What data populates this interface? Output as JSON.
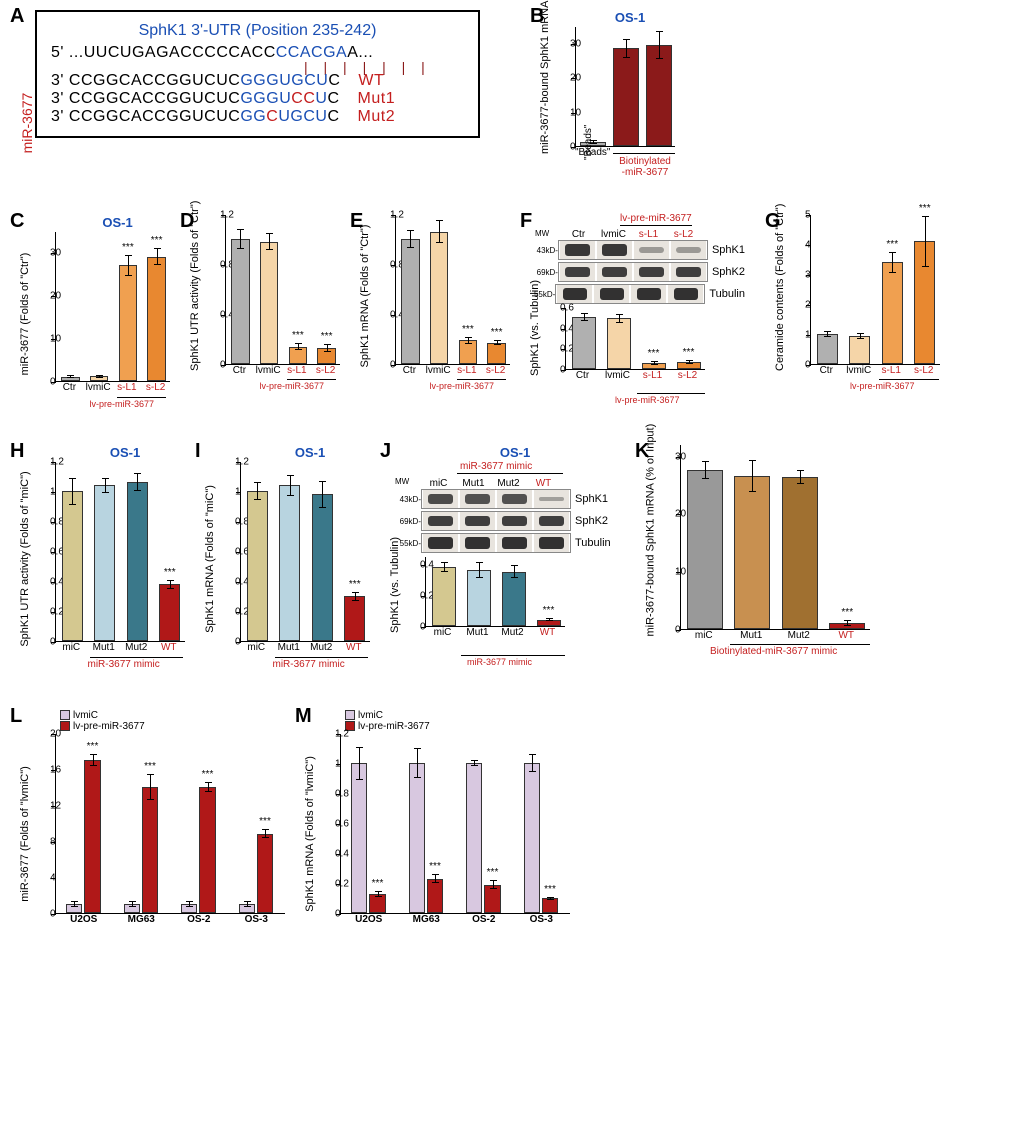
{
  "panelA": {
    "title": "SphK1 3'-UTR (Position 235-242)",
    "title_color": "#1a4fb4",
    "line1_prefix": "5'   ...UUCUGAGACCCCCACC",
    "line1_seed": "CCACGA",
    "line1_suffix": "A...",
    "pairing_bars_color": "#8b1a1a",
    "side_label": "miR-3677",
    "side_color": "#c41e1e",
    "rows": [
      {
        "prefix": "3'    CCGGCACCGGUCUC",
        "seed": "GGGUGCU",
        "seed_color": "#1a4fb4",
        "suffix": "C",
        "tag": "WT",
        "tag_color": "#c41e1e"
      },
      {
        "prefix": "3'    CCGGCACCGGUCUC",
        "seed": "GGGUCCU",
        "seed_color": "#1a4fb4",
        "mut_pos": [
          4,
          5
        ],
        "mut_color": "#c41e1e",
        "suffix": "C",
        "tag": "Mut1",
        "tag_color": "#c41e1e"
      },
      {
        "prefix": "3'    CCGGCACCGGUCUC",
        "seed": "GGCUGCU",
        "seed_color": "#1a4fb4",
        "mut_pos": [
          2
        ],
        "mut_color": "#c41e1e",
        "suffix": "C",
        "tag": "Mut2",
        "tag_color": "#c41e1e"
      }
    ]
  },
  "panelB": {
    "title": "OS-1",
    "title_color": "#1a4fb4",
    "y_label": "miR-3677-bound\nSphK1 mRNA (% of Input)",
    "y_max": 35,
    "y_ticks": [
      0,
      10,
      20,
      30
    ],
    "bars": [
      {
        "x": "\"Beads\"",
        "v": 1.2,
        "err": 0.5,
        "color": "#b0b0b0"
      },
      {
        "x": "",
        "v": 28.5,
        "err": 2.8,
        "color": "#8b1a1a"
      },
      {
        "x": "",
        "v": 29.5,
        "err": 4.0,
        "color": "#8b1a1a"
      }
    ],
    "group_label": "Biotinylated\n-miR-3677",
    "group_color": "#c41e1e"
  },
  "panelC": {
    "title": "OS-1",
    "title_color": "#1a4fb4",
    "y_label": "miR-3677 (Folds of \"Ctr\")",
    "y_max": 35,
    "y_ticks": [
      0,
      10,
      20,
      30
    ],
    "bars": [
      {
        "x": "Ctr",
        "v": 1.0,
        "err": 0.3,
        "color": "#b0b0b0"
      },
      {
        "x": "lvmiC",
        "v": 1.1,
        "err": 0.3,
        "color": "#f5d5a8"
      },
      {
        "x": "s-L1",
        "v": 27,
        "err": 2.5,
        "color": "#f0a050",
        "sig": "***",
        "xcolor": "#c41e1e"
      },
      {
        "x": "s-L2",
        "v": 29,
        "err": 2.0,
        "color": "#e88830",
        "sig": "***",
        "xcolor": "#c41e1e"
      }
    ],
    "group_label": "lv-pre-miR-3677",
    "group_color": "#c41e1e"
  },
  "panelD": {
    "y_label": "SphK1 UTR activity (Folds of \"Ctr\")",
    "y_max": 1.2,
    "y_ticks": [
      0,
      0.4,
      0.8,
      1.2
    ],
    "bars": [
      {
        "x": "Ctr",
        "v": 1.0,
        "err": 0.08,
        "color": "#b0b0b0"
      },
      {
        "x": "lvmiC",
        "v": 0.98,
        "err": 0.07,
        "color": "#f5d5a8"
      },
      {
        "x": "s-L1",
        "v": 0.14,
        "err": 0.03,
        "color": "#f0a050",
        "sig": "***",
        "xcolor": "#c41e1e"
      },
      {
        "x": "s-L2",
        "v": 0.13,
        "err": 0.03,
        "color": "#e88830",
        "sig": "***",
        "xcolor": "#c41e1e"
      }
    ],
    "group_label": "lv-pre-miR-3677",
    "group_color": "#c41e1e"
  },
  "panelE": {
    "y_label": "SphK1 mRNA (Folds of \"Ctr\")",
    "y_max": 1.2,
    "y_ticks": [
      0,
      0.4,
      0.8,
      1.2
    ],
    "bars": [
      {
        "x": "Ctr",
        "v": 1.0,
        "err": 0.07,
        "color": "#b0b0b0"
      },
      {
        "x": "lvmiC",
        "v": 1.06,
        "err": 0.09,
        "color": "#f5d5a8"
      },
      {
        "x": "s-L1",
        "v": 0.19,
        "err": 0.03,
        "color": "#f0a050",
        "sig": "***",
        "xcolor": "#c41e1e"
      },
      {
        "x": "s-L2",
        "v": 0.17,
        "err": 0.02,
        "color": "#e88830",
        "sig": "***",
        "xcolor": "#c41e1e"
      }
    ],
    "group_label": "lv-pre-miR-3677",
    "group_color": "#c41e1e"
  },
  "panelF": {
    "header": "lv-pre-miR-3677",
    "header_color": "#c41e1e",
    "lanes": [
      "Ctr",
      "lvmiC",
      "s-L1",
      "s-L2"
    ],
    "lane_s_color": "#c41e1e",
    "mw": [
      "43kD-",
      "69kD-",
      "55kD-"
    ],
    "proteins": [
      "SphK1",
      "SphK2",
      "Tubulin"
    ],
    "band_intensity": {
      "SphK1": [
        0.9,
        0.9,
        0.15,
        0.15
      ],
      "SphK2": [
        0.85,
        0.85,
        0.85,
        0.85
      ],
      "Tubulin": [
        0.95,
        0.95,
        0.95,
        0.95
      ]
    },
    "quant": {
      "y_label": "SphK1 (vs. Tubulin)",
      "y_max": 0.6,
      "y_ticks": [
        0,
        0.2,
        0.4,
        0.6
      ],
      "bars": [
        {
          "v": 0.5,
          "err": 0.04,
          "color": "#b0b0b0"
        },
        {
          "v": 0.49,
          "err": 0.04,
          "color": "#f5d5a8"
        },
        {
          "v": 0.06,
          "err": 0.02,
          "color": "#f0a050",
          "sig": "***"
        },
        {
          "v": 0.07,
          "err": 0.02,
          "color": "#e88830",
          "sig": "***"
        }
      ]
    }
  },
  "panelG": {
    "y_label": "Ceramide contents (Folds of \"Ctr\")",
    "y_max": 5,
    "y_ticks": [
      0,
      1,
      2,
      3,
      4,
      5
    ],
    "bars": [
      {
        "x": "Ctr",
        "v": 1.0,
        "err": 0.1,
        "color": "#b0b0b0"
      },
      {
        "x": "lvmiC",
        "v": 0.95,
        "err": 0.1,
        "color": "#f5d5a8"
      },
      {
        "x": "s-L1",
        "v": 3.4,
        "err": 0.35,
        "color": "#f0a050",
        "sig": "***",
        "xcolor": "#c41e1e"
      },
      {
        "x": "s-L2",
        "v": 4.1,
        "err": 0.85,
        "color": "#e88830",
        "sig": "***",
        "xcolor": "#c41e1e"
      }
    ],
    "group_label": "lv-pre-miR-3677",
    "group_color": "#c41e1e"
  },
  "panelH": {
    "title": "OS-1",
    "title_color": "#1a4fb4",
    "y_label": "SphK1 UTR activity  (Folds of \"miC\")",
    "y_max": 1.2,
    "y_ticks": [
      0,
      0.2,
      0.4,
      0.6,
      0.8,
      1.0,
      1.2
    ],
    "bars": [
      {
        "x": "miC",
        "v": 1.0,
        "err": 0.09,
        "color": "#d4c890"
      },
      {
        "x": "Mut1",
        "v": 1.04,
        "err": 0.05,
        "color": "#b8d4e0"
      },
      {
        "x": "Mut2",
        "v": 1.06,
        "err": 0.06,
        "color": "#3a788a"
      },
      {
        "x": "WT",
        "v": 0.38,
        "err": 0.03,
        "color": "#b01818",
        "sig": "***",
        "xcolor": "#c41e1e"
      }
    ],
    "group_label": "miR-3677 mimic",
    "group_color": "#c41e1e"
  },
  "panelI": {
    "title": "OS-1",
    "title_color": "#1a4fb4",
    "y_label": "SphK1 mRNA (Folds of \"miC\")",
    "y_max": 1.2,
    "y_ticks": [
      0,
      0.2,
      0.4,
      0.6,
      0.8,
      1.0,
      1.2
    ],
    "bars": [
      {
        "x": "miC",
        "v": 1.0,
        "err": 0.06,
        "color": "#d4c890"
      },
      {
        "x": "Mut1",
        "v": 1.04,
        "err": 0.07,
        "color": "#b8d4e0"
      },
      {
        "x": "Mut2",
        "v": 0.98,
        "err": 0.09,
        "color": "#3a788a"
      },
      {
        "x": "WT",
        "v": 0.3,
        "err": 0.03,
        "color": "#b01818",
        "sig": "***",
        "xcolor": "#c41e1e"
      }
    ],
    "group_label": "miR-3677 mimic",
    "group_color": "#c41e1e"
  },
  "panelJ": {
    "title": "OS-1",
    "title_color": "#1a4fb4",
    "header": "miR-3677 mimic",
    "header_color": "#c41e1e",
    "lanes": [
      "miC",
      "Mut1",
      "Mut2",
      "WT"
    ],
    "lane_wt_color": "#c41e1e",
    "mw": [
      "43kD-",
      "69kD-",
      "55kD-"
    ],
    "proteins": [
      "SphK1",
      "SphK2",
      "Tubulin"
    ],
    "band_intensity": {
      "SphK1": [
        0.75,
        0.7,
        0.7,
        0.1
      ],
      "SphK2": [
        0.85,
        0.85,
        0.85,
        0.85
      ],
      "Tubulin": [
        0.95,
        0.95,
        0.95,
        0.95
      ]
    },
    "quant": {
      "y_label": "SphK1 (vs. Tubulin)",
      "y_max": 0.45,
      "y_ticks": [
        0,
        0.2,
        0.4
      ],
      "bars": [
        {
          "v": 0.38,
          "err": 0.03,
          "color": "#d4c890"
        },
        {
          "v": 0.36,
          "err": 0.05,
          "color": "#b8d4e0"
        },
        {
          "v": 0.35,
          "err": 0.04,
          "color": "#3a788a"
        },
        {
          "v": 0.04,
          "err": 0.01,
          "color": "#b01818",
          "sig": "***"
        }
      ]
    }
  },
  "panelK": {
    "y_label": "miR-3677-bound\nSphK1 mRNA (% of Input)",
    "y_max": 32,
    "y_ticks": [
      0,
      10,
      20,
      30
    ],
    "bars": [
      {
        "x": "miC",
        "v": 27.5,
        "err": 1.5,
        "color": "#999"
      },
      {
        "x": "Mut1",
        "v": 26.5,
        "err": 2.8,
        "color": "#c89050"
      },
      {
        "x": "Mut2",
        "v": 26.3,
        "err": 1.2,
        "color": "#a07030"
      },
      {
        "x": "WT",
        "v": 1.0,
        "err": 0.5,
        "color": "#b01818",
        "sig": "***",
        "xcolor": "#c41e1e"
      }
    ],
    "group_label": "Biotinylated-miR-3677 mimic",
    "group_color": "#c41e1e"
  },
  "panelL": {
    "y_label": "miR-3677 (Folds of \"lvmiC\")",
    "y_max": 20,
    "y_ticks": [
      0,
      4,
      8,
      12,
      16,
      20
    ],
    "legend": [
      {
        "label": "lvmiC",
        "color": "#d8c8e0"
      },
      {
        "label": "lv-pre-miR-3677",
        "color": "#b01818"
      }
    ],
    "groups": [
      "U2OS",
      "MG63",
      "OS-2",
      "OS-3"
    ],
    "pairs": [
      {
        "c": 1.0,
        "t": 17,
        "ce": 0.3,
        "te": 0.7,
        "sig": "***"
      },
      {
        "c": 1.0,
        "t": 14,
        "ce": 0.3,
        "te": 1.4,
        "sig": "***"
      },
      {
        "c": 1.0,
        "t": 14,
        "ce": 0.3,
        "te": 0.6,
        "sig": "***"
      },
      {
        "c": 1.0,
        "t": 8.8,
        "ce": 0.3,
        "te": 0.5,
        "sig": "***"
      }
    ]
  },
  "panelM": {
    "y_label": "SphK1 mRNA (Folds of \"lvmiC\")",
    "y_max": 1.2,
    "y_ticks": [
      0,
      0.2,
      0.4,
      0.6,
      0.8,
      1.0,
      1.2
    ],
    "legend": [
      {
        "label": "lvmiC",
        "color": "#d8c8e0"
      },
      {
        "label": "lv-pre-miR-3677",
        "color": "#b01818"
      }
    ],
    "groups": [
      "U2OS",
      "MG63",
      "OS-2",
      "OS-3"
    ],
    "pairs": [
      {
        "c": 1.0,
        "t": 0.13,
        "ce": 0.11,
        "te": 0.02,
        "sig": "***"
      },
      {
        "c": 1.0,
        "t": 0.23,
        "ce": 0.1,
        "te": 0.03,
        "sig": "***"
      },
      {
        "c": 1.0,
        "t": 0.19,
        "ce": 0.02,
        "te": 0.03,
        "sig": "***"
      },
      {
        "c": 1.0,
        "t": 0.1,
        "ce": 0.06,
        "te": 0.01,
        "sig": "***"
      }
    ]
  }
}
